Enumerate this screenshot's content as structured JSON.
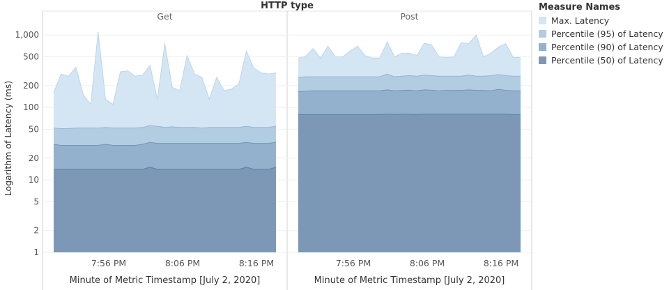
{
  "chart_data": {
    "type": "area",
    "title": "HTTP type",
    "ylabel": "Logarithm of Latency (ms)",
    "xlabel": "Minute of Metric Timestamp [July 2, 2020]",
    "y_scale": "log",
    "y_ticks": [
      1,
      2,
      5,
      10,
      20,
      50,
      100,
      200,
      500,
      1000
    ],
    "y_tick_labels": [
      "1",
      "2",
      "5",
      "10",
      "20",
      "50",
      "100",
      "200",
      "500",
      "1,000"
    ],
    "x_ticks": [
      "7:56 PM",
      "8:06 PM",
      "8:16 PM"
    ],
    "legend": {
      "title": "Measure Names",
      "placement": "top-right",
      "items": [
        {
          "label": "Max. Latency",
          "color": "#d4e6f4"
        },
        {
          "label": "Percentile (95) of Latency",
          "color": "#b2cce2"
        },
        {
          "label": "Percentile (90) of Latency",
          "color": "#93b1cd"
        },
        {
          "label": "Percentile (50) of Latency",
          "color": "#7c98b6"
        }
      ]
    },
    "panels": [
      {
        "name": "Get",
        "series": [
          {
            "name": "Max. Latency",
            "values": [
              160,
              290,
              270,
              360,
              150,
              110,
              1100,
              130,
              110,
              310,
              320,
              270,
              280,
              380,
              130,
              760,
              190,
              170,
              520,
              290,
              260,
              130,
              260,
              170,
              180,
              210,
              600,
              350,
              300,
              290,
              300
            ]
          },
          {
            "name": "Percentile (95) of Latency",
            "values": [
              52,
              51,
              51,
              52,
              52,
              52,
              52,
              53,
              52,
              52,
              52,
              52,
              53,
              56,
              55,
              53,
              54,
              53,
              53,
              53,
              52,
              53,
              53,
              53,
              53,
              53,
              55,
              53,
              53,
              53,
              55
            ]
          },
          {
            "name": "Percentile (90) of Latency",
            "values": [
              31,
              30,
              30,
              30,
              30,
              30,
              30,
              31,
              30,
              30,
              30,
              30,
              31,
              33,
              32,
              32,
              32,
              32,
              32,
              32,
              32,
              32,
              32,
              32,
              32,
              32,
              33,
              32,
              32,
              32,
              33
            ]
          },
          {
            "name": "Percentile (50) of Latency",
            "values": [
              14,
              14,
              14,
              14,
              14,
              14,
              14,
              14,
              14,
              14,
              14,
              14,
              14,
              15,
              14,
              14,
              14,
              14,
              14,
              14,
              14,
              14,
              14,
              14,
              14,
              14,
              15,
              14,
              14,
              14,
              15
            ]
          }
        ]
      },
      {
        "name": "Post",
        "series": [
          {
            "name": "Max. Latency",
            "values": [
              480,
              510,
              650,
              480,
              700,
              500,
              500,
              600,
              700,
              520,
              480,
              480,
              800,
              500,
              560,
              560,
              520,
              770,
              730,
              500,
              490,
              500,
              780,
              760,
              1000,
              500,
              560,
              680,
              760,
              490,
              490
            ]
          },
          {
            "name": "Percentile (95) of Latency",
            "values": [
              260,
              265,
              265,
              265,
              265,
              265,
              265,
              265,
              265,
              265,
              265,
              265,
              290,
              265,
              270,
              275,
              270,
              280,
              275,
              270,
              270,
              270,
              270,
              280,
              270,
              270,
              275,
              285,
              275,
              270,
              270
            ]
          },
          {
            "name": "Percentile (90) of Latency",
            "values": [
              165,
              168,
              170,
              170,
              170,
              170,
              170,
              170,
              170,
              170,
              170,
              170,
              175,
              170,
              172,
              173,
              170,
              175,
              173,
              170,
              172,
              172,
              172,
              175,
              172,
              172,
              170,
              178,
              172,
              170,
              170
            ]
          },
          {
            "name": "Percentile (50) of Latency",
            "values": [
              80,
              80,
              80,
              80,
              80,
              80,
              80,
              80,
              80,
              80,
              80,
              80,
              81,
              80,
              81,
              81,
              80,
              81,
              81,
              81,
              81,
              81,
              81,
              81,
              81,
              81,
              81,
              81,
              81,
              80,
              80
            ]
          }
        ]
      }
    ]
  }
}
